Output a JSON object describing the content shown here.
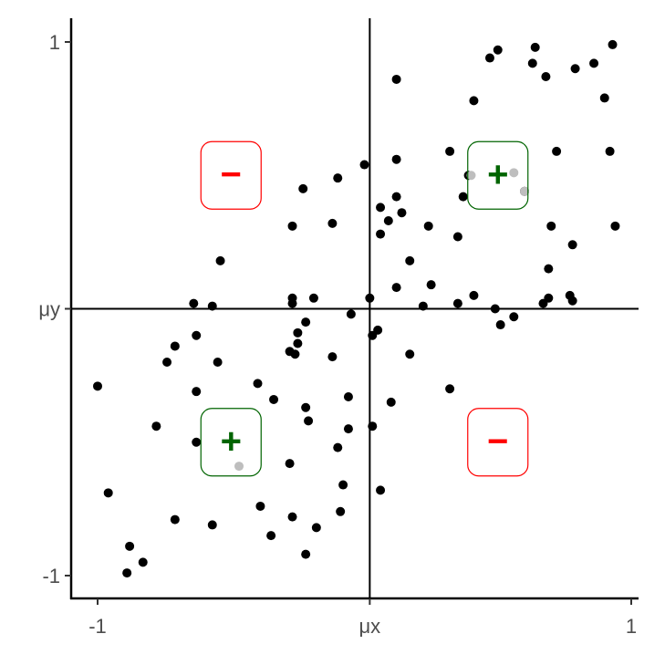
{
  "chart_data": {
    "type": "scatter",
    "title": "",
    "xlabel": "",
    "ylabel": "",
    "xlim": [
      -1.1,
      1.03
    ],
    "ylim": [
      -1.08,
      1.09
    ],
    "grid": false,
    "x_ticks": [
      {
        "value": -1,
        "label": "-1"
      },
      {
        "value": 0.02,
        "label": "μx"
      },
      {
        "value": 1,
        "label": "1"
      }
    ],
    "y_ticks": [
      {
        "value": -1,
        "label": "-1"
      },
      {
        "value": 0,
        "label": "μy"
      },
      {
        "value": 1,
        "label": "1"
      }
    ],
    "reference_lines": {
      "x_mean": 0.02,
      "y_mean": 0
    },
    "colors": {
      "point": "#000000",
      "highlight": "#bebebe",
      "positive": "#006400",
      "negative": "#ff0000",
      "axis": "#000000"
    },
    "points": [
      [
        0.0,
        0.54
      ],
      [
        -0.1,
        0.49
      ],
      [
        -0.23,
        0.45
      ],
      [
        -0.27,
        0.31
      ],
      [
        -0.12,
        0.32
      ],
      [
        -0.54,
        0.18
      ],
      [
        -0.64,
        0.02
      ],
      [
        -0.57,
        0.01
      ],
      [
        -0.27,
        0.04
      ],
      [
        -0.27,
        0.02
      ],
      [
        -0.19,
        0.04
      ],
      [
        0.02,
        0.04
      ],
      [
        0.12,
        0.86
      ],
      [
        0.5,
        0.97
      ],
      [
        0.47,
        0.94
      ],
      [
        0.64,
        0.98
      ],
      [
        0.63,
        0.92
      ],
      [
        0.68,
        0.87
      ],
      [
        0.79,
        0.9
      ],
      [
        0.86,
        0.92
      ],
      [
        0.93,
        0.99
      ],
      [
        0.41,
        0.78
      ],
      [
        0.9,
        0.79
      ],
      [
        0.32,
        0.59
      ],
      [
        0.12,
        0.56
      ],
      [
        0.39,
        0.5
      ],
      [
        0.6,
        0.44
      ],
      [
        0.72,
        0.59
      ],
      [
        0.92,
        0.59
      ],
      [
        0.12,
        0.42
      ],
      [
        0.06,
        0.38
      ],
      [
        0.14,
        0.36
      ],
      [
        0.09,
        0.33
      ],
      [
        0.06,
        0.28
      ],
      [
        0.24,
        0.31
      ],
      [
        0.37,
        0.42
      ],
      [
        0.35,
        0.27
      ],
      [
        0.17,
        0.18
      ],
      [
        0.7,
        0.31
      ],
      [
        0.94,
        0.31
      ],
      [
        0.78,
        0.24
      ],
      [
        0.69,
        0.15
      ],
      [
        0.12,
        0.08
      ],
      [
        0.25,
        0.09
      ],
      [
        0.41,
        0.05
      ],
      [
        0.35,
        0.02
      ],
      [
        0.22,
        0.01
      ],
      [
        0.49,
        0.0
      ],
      [
        0.69,
        0.04
      ],
      [
        0.67,
        0.02
      ],
      [
        0.77,
        0.05
      ],
      [
        0.78,
        0.03
      ],
      [
        -0.05,
        -0.02
      ],
      [
        -0.22,
        -0.05
      ],
      [
        -0.25,
        -0.09
      ],
      [
        -0.25,
        -0.13
      ],
      [
        -0.28,
        -0.16
      ],
      [
        -0.26,
        -0.17
      ],
      [
        -0.63,
        -0.1
      ],
      [
        -0.71,
        -0.14
      ],
      [
        -0.74,
        -0.2
      ],
      [
        -0.55,
        -0.2
      ],
      [
        -0.12,
        -0.18
      ],
      [
        -1.0,
        -0.29
      ],
      [
        -0.63,
        -0.31
      ],
      [
        -0.4,
        -0.28
      ],
      [
        -0.34,
        -0.34
      ],
      [
        -0.22,
        -0.37
      ],
      [
        -0.21,
        -0.42
      ],
      [
        -0.06,
        -0.33
      ],
      [
        -0.06,
        -0.45
      ],
      [
        -0.1,
        -0.52
      ],
      [
        -0.78,
        -0.44
      ],
      [
        -0.63,
        -0.5
      ],
      [
        -0.28,
        -0.58
      ],
      [
        -0.96,
        -0.69
      ],
      [
        -0.08,
        -0.66
      ],
      [
        -0.09,
        -0.76
      ],
      [
        -0.39,
        -0.74
      ],
      [
        -0.27,
        -0.78
      ],
      [
        -0.18,
        -0.82
      ],
      [
        -0.71,
        -0.79
      ],
      [
        -0.57,
        -0.81
      ],
      [
        -0.35,
        -0.85
      ],
      [
        -0.22,
        -0.92
      ],
      [
        -0.88,
        -0.89
      ],
      [
        -0.83,
        -0.95
      ],
      [
        -0.89,
        -0.99
      ],
      [
        0.56,
        -0.03
      ],
      [
        0.51,
        -0.06
      ],
      [
        0.05,
        -0.08
      ],
      [
        0.03,
        -0.1
      ],
      [
        0.17,
        -0.17
      ],
      [
        0.32,
        -0.3
      ],
      [
        0.1,
        -0.35
      ],
      [
        0.03,
        -0.44
      ],
      [
        0.06,
        -0.68
      ]
    ],
    "highlighted_points": [
      [
        0.4,
        0.5
      ],
      [
        0.56,
        0.51
      ],
      [
        0.6,
        0.44
      ],
      [
        -0.47,
        -0.59
      ]
    ],
    "annotations": [
      {
        "x": -0.5,
        "y": 0.5,
        "label": "−",
        "sign": "negative"
      },
      {
        "x": 0.5,
        "y": 0.5,
        "label": "+",
        "sign": "positive"
      },
      {
        "x": -0.5,
        "y": -0.5,
        "label": "+",
        "sign": "positive"
      },
      {
        "x": 0.5,
        "y": -0.5,
        "label": "−",
        "sign": "negative"
      }
    ]
  }
}
